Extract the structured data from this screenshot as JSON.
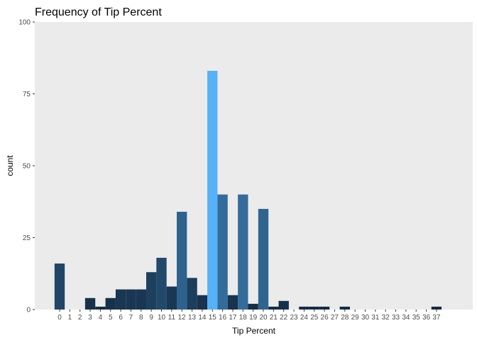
{
  "chart_data": {
    "type": "bar",
    "title": "Frequency of Tip Percent",
    "xlabel": "Tip Percent",
    "ylabel": "count",
    "ylim": [
      0,
      100
    ],
    "yticks": [
      0,
      25,
      50,
      75,
      100
    ],
    "background": "#ebebeb",
    "grid": false,
    "legend": "none",
    "color_scale": {
      "low": "#132b43",
      "high": "#56b1f7"
    },
    "categories": [
      "0",
      "1",
      "2",
      "3",
      "4",
      "5",
      "6",
      "7",
      "8",
      "9",
      "10",
      "11",
      "12",
      "13",
      "14",
      "15",
      "16",
      "17",
      "18",
      "19",
      "20",
      "21",
      "22",
      "23",
      "24",
      "25",
      "26",
      "27",
      "28",
      "29",
      "30",
      "31",
      "32",
      "33",
      "34",
      "35",
      "36",
      "37"
    ],
    "values": [
      16,
      0,
      0,
      4,
      1,
      4,
      7,
      7,
      7,
      13,
      18,
      8,
      34,
      11,
      5,
      83,
      40,
      5,
      40,
      2,
      35,
      1,
      3,
      0,
      1,
      1,
      1,
      0,
      1,
      0,
      0,
      0,
      0,
      0,
      0,
      0,
      0,
      1
    ]
  }
}
